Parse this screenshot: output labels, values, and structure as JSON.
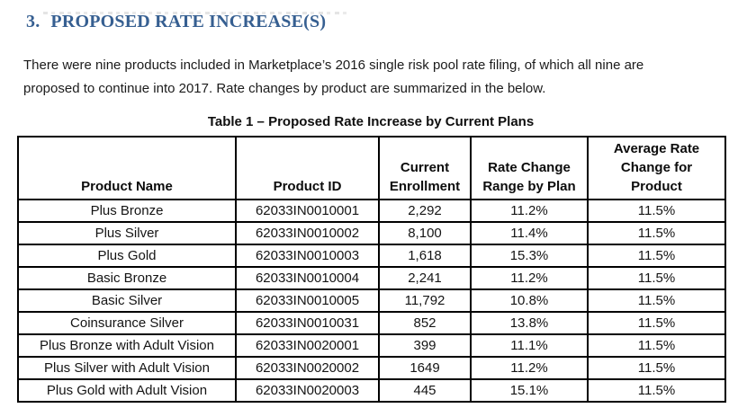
{
  "heading": {
    "number": "3.",
    "title": "PROPOSED RATE INCREASE(S)"
  },
  "intro_paragraph": "There were nine products included in Marketplace’s 2016 single risk pool rate filing, of which all nine are\nproposed to continue into 2017. Rate changes by product are summarized in the below.",
  "table": {
    "caption": "Table 1 – Proposed Rate Increase by Current Plans",
    "columns": [
      "Product Name",
      "Product ID",
      "Current\nEnrollment",
      "Rate Change\nRange by Plan",
      "Average Rate\nChange for\nProduct"
    ],
    "rows": [
      [
        "Plus Bronze",
        "62033IN0010001",
        "2,292",
        "11.2%",
        "11.5%"
      ],
      [
        "Plus Silver",
        "62033IN0010002",
        "8,100",
        "11.4%",
        "11.5%"
      ],
      [
        "Plus Gold",
        "62033IN0010003",
        "1,618",
        "15.3%",
        "11.5%"
      ],
      [
        "Basic Bronze",
        "62033IN0010004",
        "2,241",
        "11.2%",
        "11.5%"
      ],
      [
        "Basic Silver",
        "62033IN0010005",
        "11,792",
        "10.8%",
        "11.5%"
      ],
      [
        "Coinsurance Silver",
        "62033IN0010031",
        "852",
        "13.8%",
        "11.5%"
      ],
      [
        "Plus Bronze with Adult Vision",
        "62033IN0020001",
        "399",
        "11.1%",
        "11.5%"
      ],
      [
        "Plus Silver with Adult Vision",
        "62033IN0020002",
        "1649",
        "11.2%",
        "11.5%"
      ],
      [
        "Plus Gold with Adult Vision",
        "62033IN0020003",
        "445",
        "15.1%",
        "11.5%"
      ]
    ]
  },
  "colors": {
    "heading_blue": "#365f91",
    "body_text": "#1b1b1b",
    "table_border": "#000000"
  }
}
